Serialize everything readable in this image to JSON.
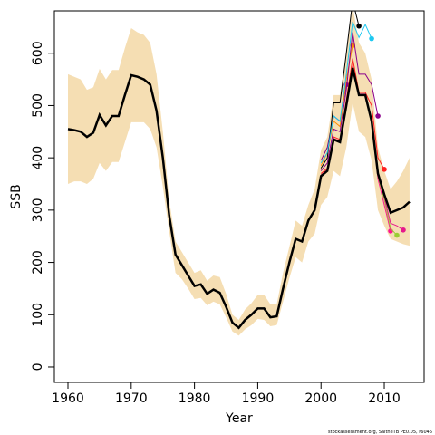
{
  "chart_data": {
    "type": "line",
    "x_label": "Year",
    "y_label": "SSB",
    "footer": "stockassessment.org, SaitheTB PE0.05, r6046",
    "xlim": [
      1957.85,
      2016.3
    ],
    "ylim": [
      -29.5,
      681
    ],
    "xticks": [
      1960,
      1970,
      1980,
      1990,
      2000,
      2010
    ],
    "yticks": [
      0,
      100,
      200,
      300,
      400,
      500,
      600
    ],
    "band": {
      "color": "#f5deb3",
      "x": [
        1960,
        1961,
        1962,
        1963,
        1964,
        1965,
        1966,
        1967,
        1968,
        1969,
        1970,
        1971,
        1972,
        1973,
        1974,
        1975,
        1976,
        1977,
        1978,
        1979,
        1980,
        1981,
        1982,
        1983,
        1984,
        1985,
        1986,
        1987,
        1988,
        1989,
        1990,
        1991,
        1992,
        1993,
        1994,
        1995,
        1996,
        1997,
        1998,
        1999,
        2000,
        2001,
        2002,
        2003,
        2004,
        2005,
        2006,
        2007,
        2008,
        2009,
        2010,
        2011,
        2012,
        2013,
        2014
      ],
      "upper": [
        560,
        555,
        550,
        530,
        535,
        570,
        550,
        568,
        568,
        610,
        648,
        640,
        635,
        620,
        560,
        450,
        320,
        240,
        220,
        200,
        180,
        185,
        165,
        175,
        172,
        140,
        100,
        90,
        110,
        122,
        138,
        138,
        120,
        120,
        180,
        230,
        280,
        270,
        310,
        340,
        415,
        440,
        520,
        520,
        600,
        690,
        620,
        600,
        550,
        420,
        375,
        340,
        355,
        375,
        400
      ],
      "lower": [
        350,
        355,
        355,
        350,
        360,
        390,
        375,
        392,
        392,
        430,
        468,
        468,
        468,
        455,
        420,
        345,
        260,
        180,
        168,
        150,
        130,
        132,
        118,
        125,
        120,
        95,
        68,
        60,
        72,
        80,
        92,
        90,
        78,
        80,
        125,
        170,
        210,
        200,
        240,
        255,
        310,
        325,
        375,
        365,
        420,
        505,
        450,
        440,
        395,
        300,
        270,
        245,
        240,
        235,
        232
      ]
    },
    "series": [
      {
        "color": "#000000",
        "x": [
          1960,
          1961,
          1962,
          1963,
          1964,
          1965,
          1966,
          1967,
          1968,
          1969,
          1970,
          1971,
          1972,
          1973,
          1974,
          1975,
          1976,
          1977,
          1978,
          1979,
          1980,
          1981,
          1982,
          1983,
          1984,
          1985,
          1986,
          1987,
          1988,
          1989,
          1990,
          1991,
          1992,
          1993,
          1994,
          1995,
          1996,
          1997,
          1998,
          1999,
          2000,
          2001,
          2002,
          2003,
          2004,
          2005,
          2006,
          2007,
          2008,
          2009,
          2010,
          2011,
          2012,
          2013,
          2014
        ],
        "values": [
          455,
          453,
          450,
          440,
          448,
          482,
          462,
          480,
          480,
          520,
          558,
          555,
          550,
          540,
          490,
          400,
          290,
          215,
          195,
          175,
          155,
          158,
          140,
          148,
          142,
          115,
          85,
          75,
          90,
          100,
          112,
          112,
          95,
          97,
          150,
          200,
          245,
          240,
          280,
          300,
          365,
          375,
          435,
          430,
          500,
          572,
          520,
          520,
          470,
          370,
          330,
          295,
          300,
          305,
          316
        ]
      },
      {
        "color": "#800080",
        "x": [
          2000,
          2001,
          2002,
          2003,
          2004
        ],
        "values": [
          395,
          420,
          480,
          470,
          540
        ]
      },
      {
        "color": "#ff8c00",
        "x": [
          2000,
          2001,
          2002,
          2003,
          2004,
          2005
        ],
        "values": [
          385,
          410,
          470,
          460,
          550,
          615
        ]
      },
      {
        "color": "#000000",
        "x": [
          2000,
          2001,
          2002,
          2003,
          2004,
          2005,
          2006
        ],
        "values": [
          380,
          400,
          505,
          505,
          600,
          700,
          652
        ]
      },
      {
        "color": "#1ec8f0",
        "x": [
          2000,
          2001,
          2002,
          2003,
          2004,
          2005,
          2006,
          2007,
          2008
        ],
        "values": [
          390,
          410,
          480,
          470,
          560,
          660,
          630,
          655,
          628
        ]
      },
      {
        "color": "#8b008b",
        "x": [
          2000,
          2001,
          2002,
          2003,
          2004,
          2005,
          2006,
          2007,
          2008,
          2009
        ],
        "values": [
          375,
          390,
          455,
          450,
          530,
          640,
          560,
          560,
          540,
          480
        ]
      },
      {
        "color": "#ff2020",
        "x": [
          2000,
          2001,
          2002,
          2003,
          2004,
          2005,
          2006,
          2007,
          2008,
          2009,
          2010
        ],
        "values": [
          370,
          380,
          440,
          435,
          510,
          590,
          525,
          525,
          500,
          400,
          378
        ]
      },
      {
        "color": "#ff1493",
        "x": [
          2000,
          2001,
          2002,
          2003,
          2004,
          2005,
          2006,
          2007,
          2008,
          2009,
          2010,
          2011
        ],
        "values": [
          367,
          377,
          437,
          432,
          502,
          575,
          522,
          522,
          472,
          360,
          310,
          260
        ]
      },
      {
        "color": "#9acd32",
        "x": [
          2000,
          2001,
          2002,
          2003,
          2004,
          2005,
          2006,
          2007,
          2008,
          2009,
          2010,
          2011,
          2012
        ],
        "values": [
          366,
          376,
          436,
          431,
          501,
          573,
          521,
          521,
          471,
          365,
          320,
          265,
          252
        ]
      },
      {
        "color": "#e6198c",
        "x": [
          2000,
          2001,
          2002,
          2003,
          2004,
          2005,
          2006,
          2007,
          2008,
          2009,
          2010,
          2011,
          2012,
          2013
        ],
        "values": [
          365,
          375,
          435,
          430,
          500,
          572,
          520,
          520,
          470,
          368,
          325,
          275,
          270,
          262
        ]
      }
    ]
  }
}
